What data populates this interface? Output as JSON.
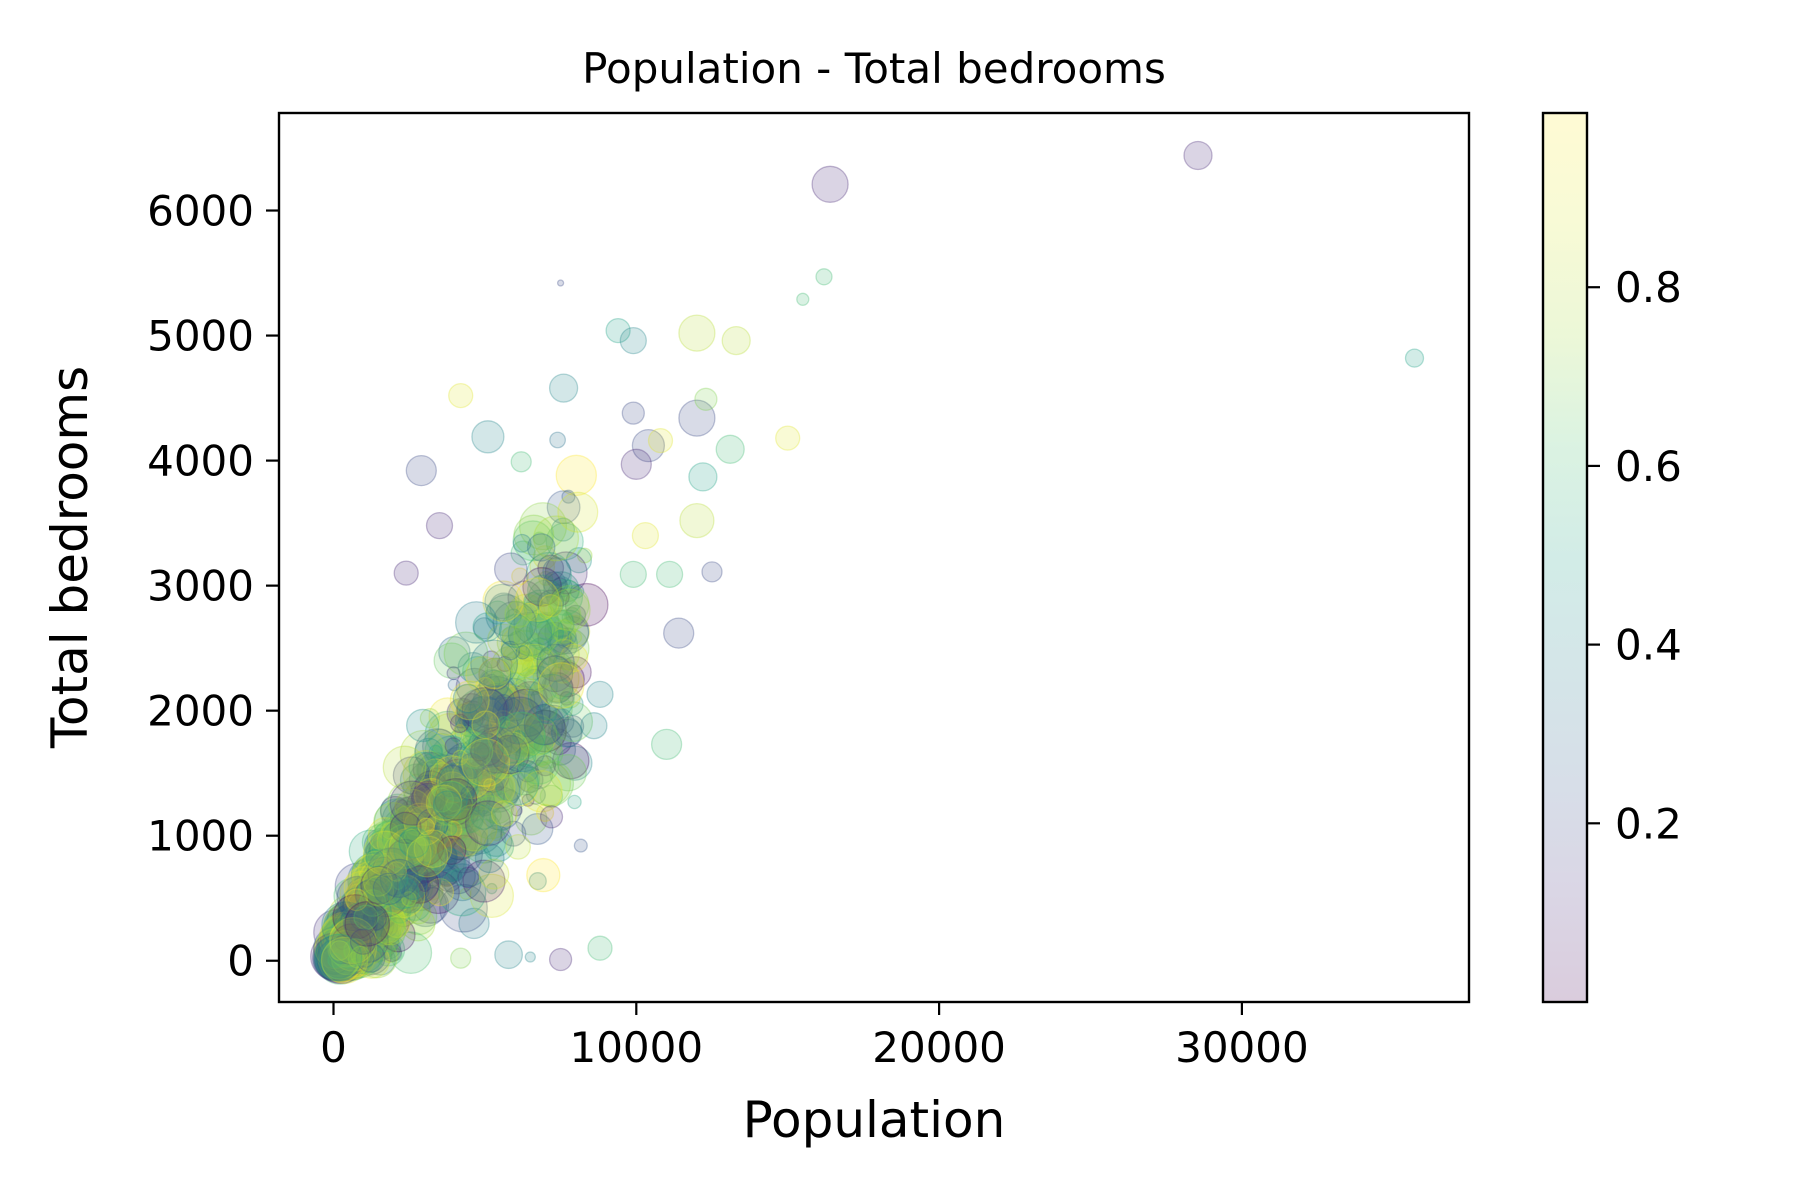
{
  "chart_data": {
    "type": "scatter",
    "title": "Population - Total bedrooms",
    "xlabel": "Population",
    "ylabel": "Total bedrooms",
    "xlim": [
      -1800,
      37500
    ],
    "ylim": [
      -330,
      6780
    ],
    "grid": false,
    "xticks": [
      0,
      10000,
      20000,
      30000
    ],
    "yticks": [
      0,
      1000,
      2000,
      3000,
      4000,
      5000,
      6000
    ],
    "colormap": "viridis",
    "alpha": 0.2,
    "colorbar": {
      "range": [
        0.0,
        0.995
      ],
      "ticks": [
        0.2,
        0.4,
        0.6,
        0.8
      ],
      "tick_labels": [
        "0.2",
        "0.4",
        "0.6",
        "0.8"
      ]
    },
    "notable_points": [
      {
        "x": 28550,
        "y": 6440,
        "size": 14,
        "c": 0.1
      },
      {
        "x": 16400,
        "y": 6210,
        "size": 18,
        "c": 0.1
      },
      {
        "x": 35700,
        "y": 4820,
        "size": 9,
        "c": 0.5
      },
      {
        "x": 7500,
        "y": 5420,
        "size": 3,
        "c": 0.2
      },
      {
        "x": 16200,
        "y": 5470,
        "size": 8,
        "c": 0.6
      },
      {
        "x": 15500,
        "y": 5290,
        "size": 6,
        "c": 0.6
      },
      {
        "x": 12000,
        "y": 5020,
        "size": 18,
        "c": 0.8
      },
      {
        "x": 13300,
        "y": 4960,
        "size": 14,
        "c": 0.8
      },
      {
        "x": 9400,
        "y": 5040,
        "size": 12,
        "c": 0.5
      },
      {
        "x": 9900,
        "y": 4960,
        "size": 13,
        "c": 0.4
      },
      {
        "x": 7600,
        "y": 4580,
        "size": 14,
        "c": 0.4
      },
      {
        "x": 4200,
        "y": 4520,
        "size": 12,
        "c": 0.9
      },
      {
        "x": 12000,
        "y": 4340,
        "size": 18,
        "c": 0.2
      },
      {
        "x": 12300,
        "y": 4490,
        "size": 11,
        "c": 0.7
      },
      {
        "x": 15000,
        "y": 4180,
        "size": 12,
        "c": 0.9
      },
      {
        "x": 13100,
        "y": 4090,
        "size": 14,
        "c": 0.6
      },
      {
        "x": 12200,
        "y": 3870,
        "size": 14,
        "c": 0.5
      },
      {
        "x": 10400,
        "y": 4120,
        "size": 16,
        "c": 0.2
      },
      {
        "x": 10800,
        "y": 4160,
        "size": 12,
        "c": 0.9
      },
      {
        "x": 10000,
        "y": 3970,
        "size": 15,
        "c": 0.1
      },
      {
        "x": 9900,
        "y": 4380,
        "size": 11,
        "c": 0.2
      },
      {
        "x": 5100,
        "y": 4190,
        "size": 16,
        "c": 0.4
      },
      {
        "x": 6200,
        "y": 3990,
        "size": 10,
        "c": 0.6
      },
      {
        "x": 2900,
        "y": 3920,
        "size": 15,
        "c": 0.2
      },
      {
        "x": 12000,
        "y": 3520,
        "size": 17,
        "c": 0.8
      },
      {
        "x": 10300,
        "y": 3400,
        "size": 13,
        "c": 0.9
      },
      {
        "x": 3500,
        "y": 3480,
        "size": 13,
        "c": 0.1
      },
      {
        "x": 2400,
        "y": 3100,
        "size": 12,
        "c": 0.1
      },
      {
        "x": 9900,
        "y": 3090,
        "size": 13,
        "c": 0.6
      },
      {
        "x": 11100,
        "y": 3090,
        "size": 13,
        "c": 0.6
      },
      {
        "x": 12500,
        "y": 3110,
        "size": 10,
        "c": 0.2
      },
      {
        "x": 11400,
        "y": 2620,
        "size": 15,
        "c": 0.2
      },
      {
        "x": 8800,
        "y": 2130,
        "size": 13,
        "c": 0.4
      },
      {
        "x": 11000,
        "y": 1730,
        "size": 15,
        "c": 0.6
      },
      {
        "x": 8600,
        "y": 1880,
        "size": 13,
        "c": 0.4
      },
      {
        "x": 7200,
        "y": 1150,
        "size": 11,
        "c": 0.1
      },
      {
        "x": 8800,
        "y": 100,
        "size": 12,
        "c": 0.6
      },
      {
        "x": 7500,
        "y": 10,
        "size": 11,
        "c": 0.1
      },
      {
        "x": 6500,
        "y": 30,
        "size": 5,
        "c": 0.4
      },
      {
        "x": 4200,
        "y": 20,
        "size": 10,
        "c": 0.7
      }
    ],
    "dense_cluster": {
      "trend": "Total bedrooms rises roughly linearly with population, about 0.33 bedrooms per person, densest near the origin",
      "population_range": [
        0,
        9000
      ],
      "bedrooms_range": [
        0,
        3800
      ],
      "approx_point_count": 1300
    }
  }
}
